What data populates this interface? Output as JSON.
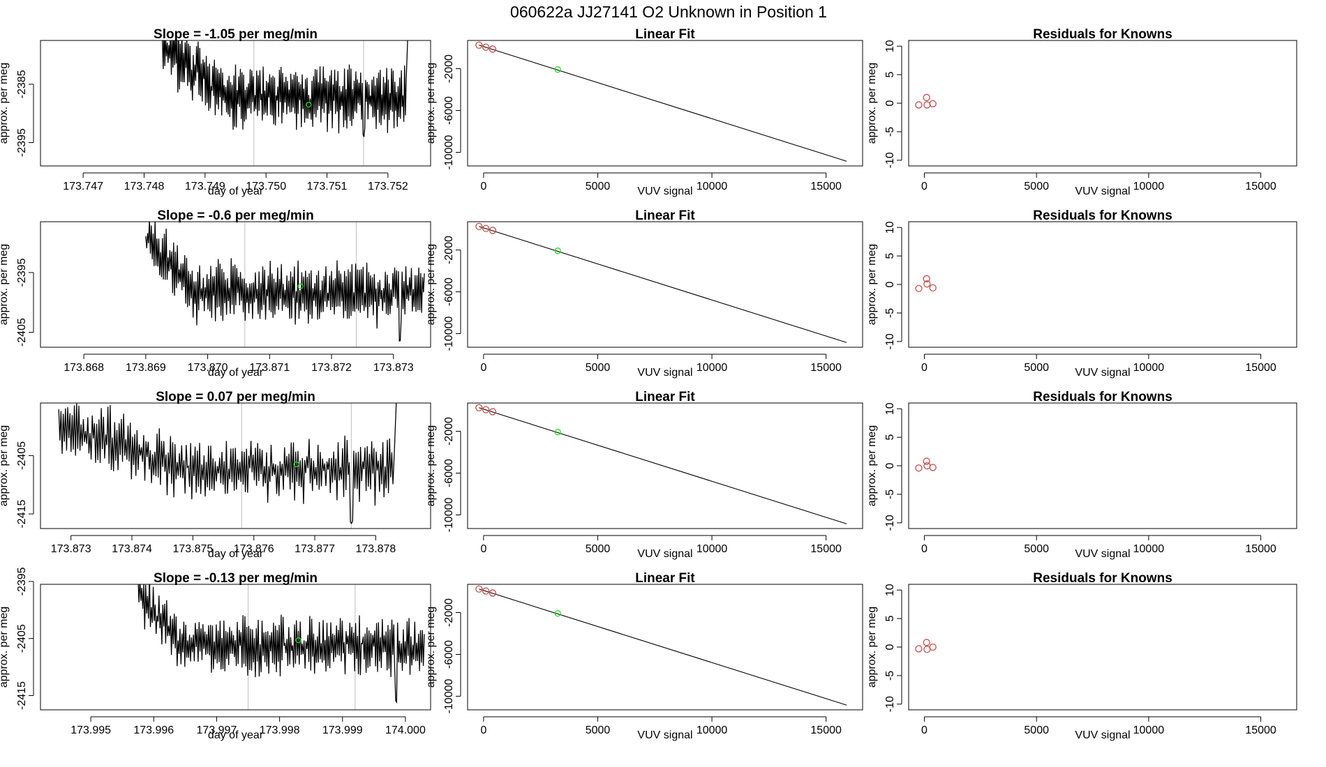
{
  "suptitle": "060622a      JJ27141    O2 Unknown in Position  1",
  "colors": {
    "line": "#000000",
    "known": "#c0504d",
    "unknown": "#22dd22",
    "vline": "#c8c8c8"
  },
  "chart_data": [
    {
      "type": "line",
      "title": "Slope =  -1.05  per meg/min",
      "xlabel": "day of year",
      "ylabel": "approx. per meg",
      "xlim": [
        173.7463,
        173.7527
      ],
      "ylim": [
        -2399,
        -2377.5
      ],
      "xticks": [
        "173.747",
        "173.748",
        "173.749",
        "173.750",
        "173.751",
        "173.752"
      ],
      "yticks": [
        "-2385",
        "-2395"
      ],
      "series": {
        "x_start": 173.7483,
        "x_end": 173.7523,
        "start_level": -2378.5,
        "settle_level": -2387.3,
        "settle_x": 173.7494,
        "amplitude": 3.4,
        "seed": 11,
        "dip": [
          173.7516,
          -2394.2
        ],
        "end_spike": true
      },
      "vlines": [
        173.7498,
        173.7516
      ],
      "unknown_point": [
        173.7507,
        -2388.5
      ]
    },
    {
      "type": "scatter",
      "title": "Linear Fit",
      "xlabel": "VUV signal",
      "ylabel": "approx. per meg",
      "xlim": [
        -700,
        16600
      ],
      "ylim": [
        -11300,
        700
      ],
      "xticks": [
        "0",
        "5000",
        "10000",
        "15000"
      ],
      "yticks": [
        "-2000",
        "-6000",
        "-10000"
      ],
      "fit_line": [
        [
          -200,
          250
        ],
        [
          15900,
          -10850
        ]
      ],
      "knowns": [
        [
          -200,
          250
        ],
        [
          100,
          60
        ],
        [
          400,
          -130
        ]
      ],
      "unknown": [
        [
          3250,
          -2080
        ]
      ]
    },
    {
      "type": "scatter",
      "title": "Residuals for Knowns",
      "xlabel": "VUV signal",
      "ylabel": "approx. per meg",
      "xlim": [
        -700,
        16600
      ],
      "ylim": [
        -11,
        11
      ],
      "xticks": [
        "0",
        "5000",
        "10000",
        "15000"
      ],
      "yticks": [
        "10",
        "5",
        "0",
        "-5",
        "-10"
      ],
      "knowns": [
        [
          -250,
          -0.3
        ],
        [
          100,
          1.0
        ],
        [
          120,
          -0.3
        ],
        [
          380,
          -0.1
        ]
      ]
    },
    {
      "type": "line",
      "title": "Slope =  -0.6  per meg/min",
      "xlabel": "day of year",
      "ylabel": "approx. per meg",
      "xlim": [
        173.8673,
        173.8736
      ],
      "ylim": [
        -2407.5,
        -2386.5
      ],
      "xticks": [
        "173.868",
        "173.869",
        "173.870",
        "173.871",
        "173.872",
        "173.873"
      ],
      "yticks": [
        "-2395",
        "-2405"
      ],
      "series": {
        "x_start": 173.869,
        "x_end": 173.8735,
        "start_level": -2388.5,
        "settle_level": -2398.5,
        "settle_x": 173.8698,
        "amplitude": 3.3,
        "seed": 23,
        "dip": [
          173.8731,
          -2406.5
        ],
        "end_spike": false
      },
      "vlines": [
        173.8706,
        173.8724
      ],
      "unknown_point": [
        173.8715,
        -2397.3
      ]
    },
    {
      "type": "scatter",
      "title": "Linear Fit",
      "xlabel": "VUV signal",
      "ylabel": "approx. per meg",
      "xlim": [
        -700,
        16600
      ],
      "ylim": [
        -11300,
        700
      ],
      "xticks": [
        "0",
        "5000",
        "10000",
        "15000"
      ],
      "yticks": [
        "-2000",
        "-6000",
        "-10000"
      ],
      "fit_line": [
        [
          -200,
          250
        ],
        [
          15900,
          -10850
        ]
      ],
      "knowns": [
        [
          -200,
          250
        ],
        [
          100,
          60
        ],
        [
          400,
          -130
        ]
      ],
      "unknown": [
        [
          3250,
          -2080
        ]
      ]
    },
    {
      "type": "scatter",
      "title": "Residuals for Knowns",
      "xlabel": "VUV signal",
      "ylabel": "approx. per meg",
      "xlim": [
        -700,
        16600
      ],
      "ylim": [
        -11,
        11
      ],
      "xticks": [
        "0",
        "5000",
        "10000",
        "15000"
      ],
      "yticks": [
        "10",
        "5",
        "0",
        "-5",
        "-10"
      ],
      "knowns": [
        [
          -250,
          -0.7
        ],
        [
          100,
          1.0
        ],
        [
          120,
          0.1
        ],
        [
          380,
          -0.6
        ]
      ]
    },
    {
      "type": "line",
      "title": "Slope =  0.07  per meg/min",
      "xlabel": "day of year",
      "ylabel": "approx. per meg",
      "xlim": [
        173.8725,
        173.8789
      ],
      "ylim": [
        -2417.5,
        -2396
      ],
      "xticks": [
        "173.873",
        "173.874",
        "173.875",
        "173.876",
        "173.877",
        "173.878"
      ],
      "yticks": [
        "-2405",
        "-2415"
      ],
      "series": {
        "x_start": 173.8728,
        "x_end": 173.8783,
        "start_level": -2399.5,
        "settle_level": -2407.5,
        "settle_x": 173.875,
        "amplitude": 3.4,
        "seed": 37,
        "dip": [
          173.8776,
          -2416.8
        ],
        "end_spike": true
      },
      "vlines": [
        173.8758,
        173.8776
      ],
      "unknown_point": [
        173.8767,
        -2406.5
      ]
    },
    {
      "type": "scatter",
      "title": "Linear Fit",
      "xlabel": "VUV signal",
      "ylabel": "approx. per meg",
      "xlim": [
        -700,
        16600
      ],
      "ylim": [
        -11300,
        700
      ],
      "xticks": [
        "0",
        "5000",
        "10000",
        "15000"
      ],
      "yticks": [
        "-2000",
        "-6000",
        "-10000"
      ],
      "fit_line": [
        [
          -200,
          250
        ],
        [
          15900,
          -10850
        ]
      ],
      "knowns": [
        [
          -200,
          250
        ],
        [
          100,
          60
        ],
        [
          400,
          -130
        ]
      ],
      "unknown": [
        [
          3250,
          -2080
        ]
      ]
    },
    {
      "type": "scatter",
      "title": "Residuals for Knowns",
      "xlabel": "VUV signal",
      "ylabel": "approx. per meg",
      "xlim": [
        -700,
        16600
      ],
      "ylim": [
        -11,
        11
      ],
      "xticks": [
        "0",
        "5000",
        "10000",
        "15000"
      ],
      "yticks": [
        "10",
        "5",
        "0",
        "-5",
        "-10"
      ],
      "knowns": [
        [
          -250,
          -0.4
        ],
        [
          100,
          0.8
        ],
        [
          120,
          0.0
        ],
        [
          380,
          -0.3
        ]
      ]
    },
    {
      "type": "line",
      "title": "Slope =  -0.13  per meg/min",
      "xlabel": "day of year",
      "ylabel": "approx. per meg",
      "xlim": [
        173.9942,
        174.0004
      ],
      "ylim": [
        -2417.5,
        -2395.5
      ],
      "xticks": [
        "173.995",
        "173.996",
        "173.997",
        "173.998",
        "173.999",
        "174.000"
      ],
      "yticks": [
        "-2395",
        "-2405",
        "-2415"
      ],
      "series": {
        "x_start": 173.99575,
        "x_end": 174.0003,
        "start_level": -2396.5,
        "settle_level": -2406.3,
        "settle_x": 173.9964,
        "amplitude": 3.3,
        "seed": 53,
        "dip": [
          173.99985,
          -2416.5
        ],
        "end_spike": false
      },
      "vlines": [
        173.9975,
        173.9992
      ],
      "unknown_point": [
        173.9983,
        -2405.3
      ]
    },
    {
      "type": "scatter",
      "title": "Linear Fit",
      "xlabel": "VUV signal",
      "ylabel": "approx. per meg",
      "xlim": [
        -700,
        16600
      ],
      "ylim": [
        -11300,
        700
      ],
      "xticks": [
        "0",
        "5000",
        "10000",
        "15000"
      ],
      "yticks": [
        "-2000",
        "-6000",
        "-10000"
      ],
      "fit_line": [
        [
          -200,
          250
        ],
        [
          15900,
          -10850
        ]
      ],
      "knowns": [
        [
          -200,
          250
        ],
        [
          100,
          60
        ],
        [
          400,
          -130
        ]
      ],
      "unknown": [
        [
          3250,
          -2080
        ]
      ]
    },
    {
      "type": "scatter",
      "title": "Residuals for Knowns",
      "xlabel": "VUV signal",
      "ylabel": "approx. per meg",
      "xlim": [
        -700,
        16600
      ],
      "ylim": [
        -11,
        11
      ],
      "xticks": [
        "0",
        "5000",
        "10000",
        "15000"
      ],
      "yticks": [
        "10",
        "5",
        "0",
        "-5",
        "-10"
      ],
      "knowns": [
        [
          -250,
          -0.3
        ],
        [
          100,
          0.8
        ],
        [
          120,
          -0.4
        ],
        [
          380,
          0.0
        ]
      ]
    }
  ]
}
